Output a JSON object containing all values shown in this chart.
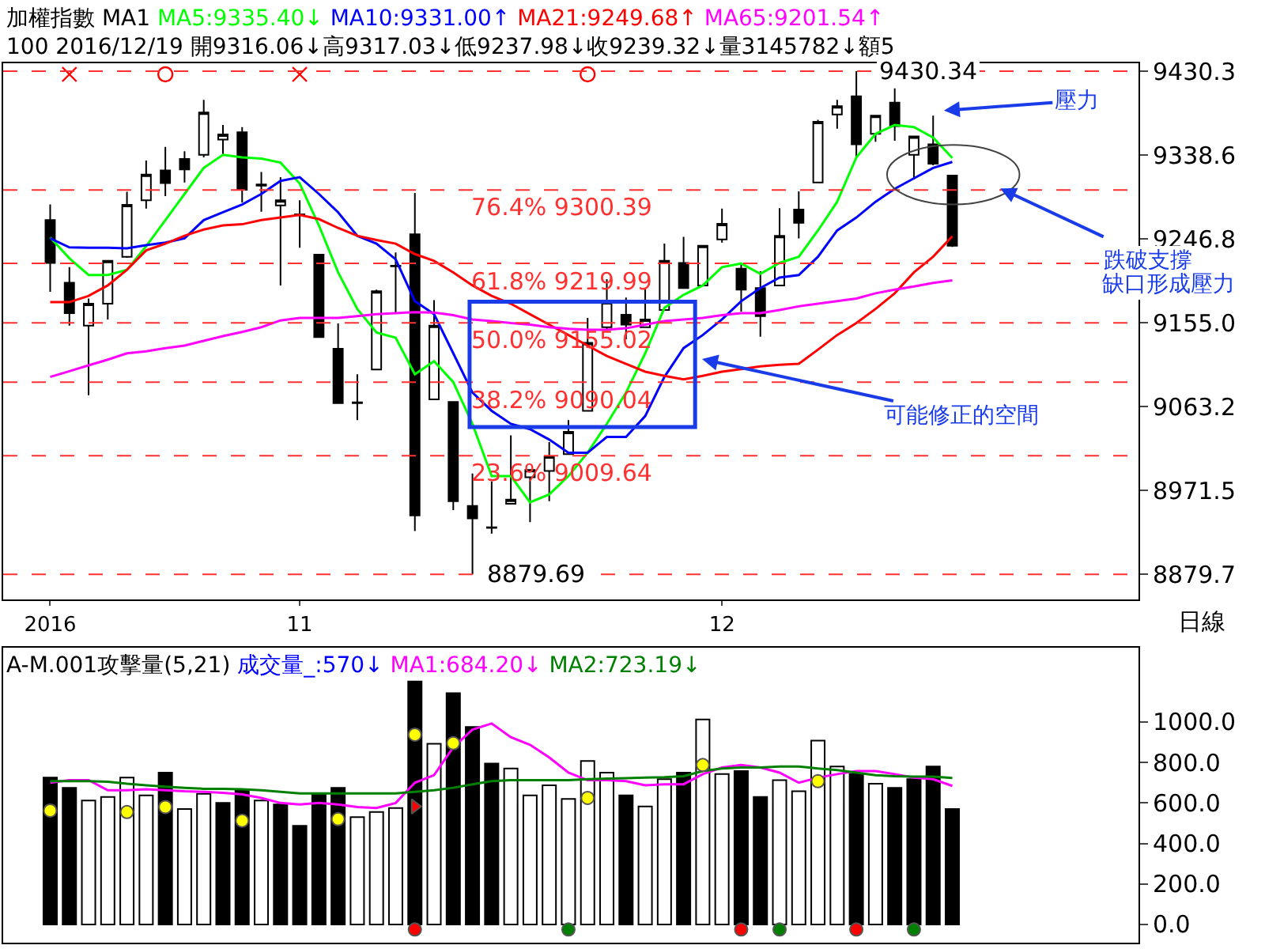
{
  "chart_data": [
    {
      "type": "candlestick",
      "title": "加權指數 MA1",
      "subtitle": "100 2016/12/19 開9316.06↓高9317.03↓低9237.98↓收9239.32↓量3145782↓額5",
      "categories": [
        "2016",
        null,
        null,
        null,
        null,
        null,
        null,
        null,
        null,
        null,
        null,
        null,
        null,
        "11",
        null,
        null,
        null,
        null,
        null,
        null,
        null,
        null,
        null,
        null,
        null,
        null,
        null,
        null,
        null,
        null,
        null,
        null,
        null,
        null,
        null,
        "12",
        null,
        null,
        null,
        null,
        null,
        null,
        null,
        null,
        null,
        null,
        null,
        null
      ],
      "ohlc": [
        [
          9267.4,
          9284.5,
          9189.0,
          9220.5
        ],
        [
          9198.8,
          9215.9,
          9151.9,
          9165.6
        ],
        [
          9151.9,
          9181.6,
          9075.8,
          9175.9
        ],
        [
          9175.9,
          9222.8,
          9158.7,
          9222.8
        ],
        [
          9227.3,
          9298.3,
          9226.2,
          9284.0
        ],
        [
          9289.1,
          9332.6,
          9279.9,
          9317.1
        ],
        [
          9321.7,
          9347.4,
          9293.7,
          9308.0
        ],
        [
          9334.3,
          9342.8,
          9308.5,
          9322.8
        ],
        [
          9338.9,
          9398.9,
          9336.0,
          9385.2
        ],
        [
          9355.4,
          9371.4,
          9338.3,
          9361.1
        ],
        [
          9363.4,
          9369.2,
          9286.8,
          9300.5
        ],
        [
          9306.3,
          9320.0,
          9276.5,
          9305.1
        ],
        [
          9283.4,
          9314.3,
          9195.9,
          9289.1
        ],
        [
          9273.7,
          9289.1,
          9237.1,
          9273.1
        ],
        [
          9229.6,
          9229.6,
          9139.3,
          9139.3
        ],
        [
          9126.7,
          9154.2,
          9067.2,
          9067.2
        ],
        [
          9068.0,
          9098.7,
          9048.4,
          9067.2
        ],
        [
          9103.8,
          9191.3,
          9103.8,
          9189.6
        ],
        [
          9217.5,
          9231.9,
          9165.6,
          9216.9
        ],
        [
          9251.9,
          9297.1,
          8927.2,
          8944.3
        ],
        [
          9071.3,
          9179.9,
          9071.3,
          9151.9
        ],
        [
          9068.4,
          9068.4,
          8950.0,
          8959.7
        ],
        [
          8954.6,
          8990.0,
          8879.69,
          8940.9
        ],
        [
          8931.2,
          8981.5,
          8924.3,
          8930.7
        ],
        [
          8956.9,
          9031.8,
          8956.9,
          8961.5
        ],
        [
          8986.0,
          8994.0,
          8936.9,
          8994.0
        ],
        [
          8992.9,
          9024.4,
          8959.7,
          9008.9
        ],
        [
          9011.2,
          9048.4,
          9011.2,
          9035.8
        ],
        [
          9058.7,
          9160.4,
          9058.7,
          9133.0
        ],
        [
          9150.2,
          9202.8,
          9147.3,
          9177.6
        ],
        [
          9163.9,
          9182.7,
          9137.0,
          9153.0
        ],
        [
          9150.2,
          9191.9,
          9150.2,
          9158.7
        ],
        [
          9169.0,
          9241.6,
          9169.0,
          9222.8
        ],
        [
          9220.5,
          9249.1,
          9193.0,
          9193.0
        ],
        [
          9195.9,
          9239.3,
          9195.9,
          9239.3
        ],
        [
          9246.2,
          9279.9,
          9242.8,
          9263.4
        ],
        [
          9214.2,
          9218.8,
          9167.3,
          9191.3
        ],
        [
          9193.0,
          9211.3,
          9139.9,
          9162.2
        ],
        [
          9195.9,
          9280.5,
          9195.9,
          9250.2
        ],
        [
          9278.8,
          9298.8,
          9247.3,
          9264.5
        ],
        [
          9308.5,
          9377.2,
          9308.5,
          9374.9
        ],
        [
          9382.9,
          9398.9,
          9367.4,
          9392.0
        ],
        [
          9402.9,
          9430.34,
          9336.0,
          9350.3
        ],
        [
          9361.7,
          9381.7,
          9353.1,
          9381.7
        ],
        [
          9396.0,
          9411.5,
          9354.3,
          9370.3
        ],
        [
          9338.8,
          9358.9,
          9312.0,
          9358.9
        ],
        [
          9350.3,
          9381.7,
          9327.4,
          9329.1
        ],
        [
          9316.06,
          9317.03,
          9237.98,
          9239.32
        ]
      ],
      "series": [
        {
          "name": "MA5:9335.40↓",
          "type": "line",
          "color": "#00ff00",
          "values": [
            9248.5,
            9225.6,
            9207.3,
            9207.3,
            9213.0,
            9238.8,
            9267.4,
            9296.0,
            9324.5,
            9338.8,
            9336.0,
            9334.8,
            9330.3,
            9307.4,
            9261.6,
            9210.2,
            9170.2,
            9144.4,
            9138.7,
            9098.7,
            9113.0,
            9090.1,
            9044.4,
            8987.2,
            8987.2,
            8958.6,
            8967.2,
            8987.2,
            9012.9,
            9044.4,
            9078.7,
            9121.6,
            9171.3,
            9185.6,
            9195.9,
            9215.9,
            9219.9,
            9208.5,
            9220.5,
            9227.3,
            9256.0,
            9287.4,
            9336.0,
            9361.7,
            9371.4,
            9369.1,
            9357.7,
            9335.4
          ]
        },
        {
          "name": "MA10:9331.00↑",
          "type": "line",
          "color": "#0000ff",
          "values": [
            9247.4,
            9237.6,
            9237.1,
            9237.1,
            9236.5,
            9239.9,
            9242.8,
            9247.4,
            9267.4,
            9275.9,
            9284.5,
            9296.0,
            9310.3,
            9314.3,
            9296.0,
            9275.9,
            9250.2,
            9241.6,
            9224.5,
            9178.7,
            9164.4,
            9121.6,
            9078.7,
            9058.7,
            9044.4,
            9038.6,
            9027.2,
            9012.9,
            9012.9,
            9030.1,
            9030.1,
            9053.0,
            9095.8,
            9127.3,
            9141.6,
            9158.7,
            9178.7,
            9193.0,
            9204.5,
            9207.3,
            9227.3,
            9256.0,
            9270.2,
            9287.4,
            9301.7,
            9313.1,
            9324.5,
            9331.0
          ]
        },
        {
          "name": "MA21:9249.68↑",
          "type": "line",
          "color": "#ff0000",
          "values": [
            9177.6,
            9177.6,
            9184.5,
            9195.9,
            9213.0,
            9234.2,
            9241.6,
            9250.2,
            9257.1,
            9261.6,
            9262.8,
            9267.4,
            9270.2,
            9273.1,
            9268.5,
            9258.8,
            9250.2,
            9245.6,
            9241.6,
            9230.2,
            9222.8,
            9210.2,
            9195.9,
            9184.5,
            9175.9,
            9164.4,
            9153.0,
            9141.6,
            9130.1,
            9118.7,
            9110.1,
            9101.5,
            9097.0,
            9093.0,
            9097.0,
            9101.5,
            9104.4,
            9107.3,
            9109.0,
            9110.1,
            9125.6,
            9141.6,
            9154.7,
            9170.2,
            9187.3,
            9210.2,
            9227.3,
            9249.68
          ]
        },
        {
          "name": "MA65:9201.54↑",
          "type": "line",
          "color": "#ff00ff",
          "values": [
            9095.8,
            9102.1,
            9108.4,
            9114.7,
            9121.6,
            9123.8,
            9127.3,
            9130.1,
            9135.3,
            9140.4,
            9145.0,
            9150.2,
            9157.6,
            9160.4,
            9160.4,
            9160.4,
            9162.2,
            9164.4,
            9165.6,
            9166.7,
            9166.2,
            9163.3,
            9158.7,
            9157.0,
            9154.7,
            9153.0,
            9150.2,
            9148.4,
            9147.3,
            9147.3,
            9149.0,
            9153.0,
            9157.0,
            9158.7,
            9160.4,
            9163.3,
            9165.6,
            9165.6,
            9169.0,
            9173.0,
            9175.9,
            9178.7,
            9181.6,
            9187.3,
            9191.3,
            9194.7,
            9198.7,
            9201.54
          ]
        },
        {
          "type": "scatter",
          "marker": "cross",
          "color": "#ff0000",
          "values": [
            null,
            9426.9,
            null,
            null,
            null,
            null,
            null,
            null,
            null,
            null,
            null,
            null,
            null,
            9426.9,
            null,
            null,
            null,
            null,
            null,
            null,
            null,
            null,
            null,
            null,
            null,
            null,
            null,
            null,
            null,
            null,
            null,
            null,
            null,
            null,
            null,
            null,
            null,
            null,
            null,
            null,
            null,
            null,
            null,
            null,
            null,
            null,
            null,
            null
          ]
        },
        {
          "type": "scatter",
          "marker": "circle",
          "color": "#ff0000",
          "values": [
            null,
            null,
            null,
            null,
            null,
            null,
            9426.9,
            null,
            null,
            null,
            null,
            null,
            null,
            null,
            null,
            null,
            null,
            null,
            null,
            null,
            null,
            null,
            null,
            null,
            null,
            null,
            null,
            null,
            9426.9,
            null,
            null,
            null,
            null,
            null,
            null,
            null,
            null,
            null,
            null,
            null,
            null,
            null,
            null,
            null,
            null,
            null,
            null,
            null
          ]
        }
      ],
      "ylim": [
        8852,
        9439
      ],
      "yticks": [
        {
          "value": 9430.3,
          "label": "9430.3"
        },
        {
          "value": 9338.6,
          "label": "9338.6"
        },
        {
          "value": 9246.8,
          "label": "9246.8"
        },
        {
          "value": 9155.0,
          "label": "9155.0"
        },
        {
          "value": 9063.2,
          "label": "9063.2"
        },
        {
          "value": 8971.5,
          "label": "8971.5"
        },
        {
          "value": 8879.7,
          "label": "8879.7"
        }
      ],
      "ref_lines": [
        {
          "axis": "y",
          "value": 9430.34,
          "label": "9430.34",
          "color": "#ff3030",
          "line_style": "dashed"
        },
        {
          "axis": "y",
          "value": 9300.39,
          "label": "76.4% 9300.39",
          "color": "#ff3030",
          "line_style": "dashed"
        },
        {
          "axis": "y",
          "value": 9219.99,
          "label": "61.8% 9219.99",
          "color": "#ff3030",
          "line_style": "dashed"
        },
        {
          "axis": "y",
          "value": 9155.02,
          "label": "50.0% 9155.02",
          "color": "#ff3030",
          "line_style": "dashed"
        },
        {
          "axis": "y",
          "value": 9090.04,
          "label": "38.2% 9090.04",
          "color": "#ff3030",
          "line_style": "dashed"
        },
        {
          "axis": "y",
          "value": 9009.64,
          "label": "23.6% 9009.64",
          "color": "#ff3030",
          "line_style": "dashed"
        },
        {
          "axis": "y",
          "value": 8879.69,
          "label": "8879.69",
          "color": "#ff3030",
          "line_style": "dashed"
        }
      ],
      "annotations": [
        "壓力",
        "跌破支撐",
        "缺口形成壓力",
        "可能修正的空間",
        "日線"
      ]
    },
    {
      "type": "bar",
      "title": "A-M.001攻擊量(5,21)",
      "tick_labels": "y",
      "categories": [
        null,
        null,
        null,
        null,
        null,
        null,
        null,
        null,
        null,
        null,
        null,
        null,
        null,
        null,
        null,
        null,
        null,
        null,
        null,
        null,
        null,
        null,
        null,
        null,
        null,
        null,
        null,
        null,
        null,
        null,
        null,
        null,
        null,
        null,
        null,
        null,
        null,
        null,
        null,
        null,
        null,
        null,
        null,
        null,
        null,
        null,
        null,
        null
      ],
      "series": [
        {
          "name": "成交量_:570↓",
          "type": "bar",
          "color": "#0000ff",
          "values": [
            725,
            675,
            612.5,
            630,
            725,
            637.5,
            750,
            570,
            645,
            600,
            662.5,
            612.5,
            592.5,
            487.5,
            642.5,
            675,
            530,
            555,
            575,
            1200,
            892.5,
            1142.5,
            975,
            795,
            770,
            637.5,
            687.5,
            620,
            807.5,
            750,
            637.5,
            582.5,
            717.5,
            750,
            1012.5,
            742.5,
            757.5,
            630,
            712.5,
            657.5,
            907.5,
            780,
            742.5,
            695,
            675,
            717.5,
            780,
            570
          ],
          "colors": [
            "#000000",
            "#000000",
            "#ffffff",
            "#ffffff",
            "#ffffff",
            "#ffffff",
            "#000000",
            "#ffffff",
            "#ffffff",
            "#000000",
            "#000000",
            "#ffffff",
            "#000000",
            "#000000",
            "#000000",
            "#000000",
            "#ffffff",
            "#ffffff",
            "#ffffff",
            "#000000",
            "#ffffff",
            "#000000",
            "#000000",
            "#000000",
            "#ffffff",
            "#ffffff",
            "#ffffff",
            "#ffffff",
            "#ffffff",
            "#ffffff",
            "#000000",
            "#ffffff",
            "#ffffff",
            "#000000",
            "#ffffff",
            "#ffffff",
            "#000000",
            "#000000",
            "#ffffff",
            "#ffffff",
            "#ffffff",
            "#ffffff",
            "#000000",
            "#ffffff",
            "#000000",
            "#000000",
            "#000000",
            "#000000"
          ]
        },
        {
          "name": "MA1:684.20↓",
          "type": "line",
          "color": "#ff00ff",
          "values": [
            700,
            712.5,
            712.5,
            662.5,
            662.5,
            667.5,
            662.5,
            657.5,
            655,
            650,
            642.5,
            625,
            600,
            592.5,
            600,
            592.5,
            580,
            575,
            600,
            700,
            737.5,
            875,
            962.5,
            992.5,
            925,
            887.5,
            825,
            750,
            712.5,
            712.5,
            707.5,
            687.5,
            692.5,
            692.5,
            742.5,
            775,
            787.5,
            775,
            750,
            700,
            725,
            742.5,
            757.5,
            757.5,
            742.5,
            725,
            717.5,
            684.2
          ]
        },
        {
          "name": "MA2:723.19↓",
          "type": "line",
          "color": "#008000",
          "values": [
            707.5,
            707.5,
            707.5,
            705,
            695,
            687.5,
            680,
            675,
            670,
            670,
            667.5,
            662.5,
            655,
            647.5,
            647.5,
            647.5,
            647.5,
            647.5,
            647.5,
            655,
            662.5,
            675,
            692.5,
            707.5,
            712.5,
            712.5,
            712.5,
            712.5,
            717.5,
            720,
            722.5,
            725,
            727.5,
            732.5,
            757.5,
            770,
            775,
            775,
            780,
            780,
            770,
            762.5,
            750,
            737.5,
            732.5,
            730,
            730,
            723.19
          ]
        },
        {
          "type": "scatter",
          "marker": "circle",
          "color": "#ffff00",
          "values": [
            562.5,
            null,
            null,
            null,
            555,
            null,
            580,
            null,
            null,
            null,
            512.5,
            null,
            null,
            null,
            null,
            520,
            null,
            null,
            null,
            937.5,
            null,
            895,
            null,
            null,
            null,
            null,
            null,
            null,
            625,
            null,
            null,
            null,
            null,
            null,
            787.5,
            null,
            null,
            null,
            null,
            null,
            707.5,
            null,
            null,
            null,
            null,
            null,
            null,
            null
          ]
        },
        {
          "type": "scatter",
          "marker": "circle",
          "color": "#ff0000",
          "values": [
            null,
            null,
            null,
            null,
            null,
            null,
            null,
            null,
            null,
            null,
            null,
            null,
            null,
            null,
            null,
            null,
            null,
            null,
            null,
            -25,
            null,
            null,
            null,
            null,
            null,
            null,
            null,
            null,
            null,
            null,
            null,
            null,
            null,
            null,
            null,
            null,
            -25,
            null,
            null,
            null,
            null,
            null,
            -25,
            null,
            null,
            null,
            null,
            null
          ]
        },
        {
          "type": "scatter",
          "marker": "circle",
          "color": "#008000",
          "values": [
            null,
            null,
            null,
            null,
            null,
            null,
            null,
            null,
            null,
            null,
            null,
            null,
            null,
            null,
            null,
            null,
            null,
            null,
            null,
            null,
            null,
            null,
            null,
            null,
            null,
            null,
            null,
            -25,
            null,
            null,
            null,
            null,
            null,
            null,
            null,
            null,
            null,
            null,
            -25,
            null,
            null,
            null,
            null,
            null,
            null,
            -25,
            null,
            null
          ]
        },
        {
          "type": "scatter",
          "marker": "triangle",
          "color": "#ff0000",
          "values": [
            null,
            null,
            null,
            null,
            null,
            null,
            null,
            null,
            null,
            null,
            null,
            null,
            null,
            null,
            null,
            null,
            null,
            null,
            null,
            582.5,
            null,
            null,
            null,
            null,
            null,
            null,
            null,
            null,
            null,
            null,
            null,
            null,
            null,
            null,
            null,
            null,
            null,
            null,
            null,
            null,
            null,
            null,
            null,
            null,
            null,
            null,
            null,
            null
          ]
        }
      ],
      "ylim": [
        -90,
        1365
      ],
      "yticks": [
        {
          "value": 0,
          "label": "0.0"
        },
        {
          "value": 200,
          "label": "200.0"
        },
        {
          "value": 400,
          "label": "400.0"
        },
        {
          "value": 600,
          "label": "600.0"
        },
        {
          "value": 800,
          "label": "800.0"
        },
        {
          "value": 1000,
          "label": "1000.0"
        }
      ]
    }
  ]
}
